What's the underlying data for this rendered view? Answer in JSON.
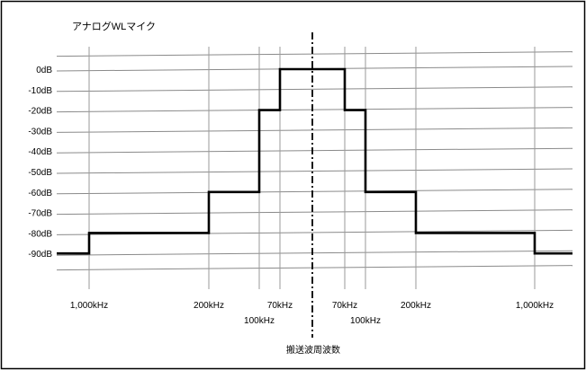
{
  "chart_data": {
    "type": "line",
    "title": "アナログWLマイク",
    "xlabel": "搬送波周波数",
    "ylabel": "",
    "y_ticks": [
      "0dB",
      "-10dB",
      "-20dB",
      "-30dB",
      "-40dB",
      "-50dB",
      "-60dB",
      "-70dB",
      "-80dB",
      "-90dB"
    ],
    "ylim": [
      -90,
      0
    ],
    "x_ticks_row1": [
      "1,000kHz",
      "200kHz",
      "70kHz",
      "70kHz",
      "200kHz",
      "1,000kHz"
    ],
    "x_ticks_row2": [
      "100kHz",
      "100kHz"
    ],
    "center_line": "carrier",
    "grid": true,
    "series": [
      {
        "points": [
          {
            "x": "-1,000kHz",
            "y": -90
          },
          {
            "x": "-1,000kHz",
            "y": -80
          },
          {
            "x": "-200kHz",
            "y": -80
          },
          {
            "x": "-200kHz",
            "y": -60
          },
          {
            "x": "-100kHz",
            "y": -60
          },
          {
            "x": "-100kHz",
            "y": -20
          },
          {
            "x": "-70kHz",
            "y": -20
          },
          {
            "x": "-70kHz",
            "y": 0
          },
          {
            "x": "70kHz",
            "y": 0
          },
          {
            "x": "70kHz",
            "y": -20
          },
          {
            "x": "100kHz",
            "y": -20
          },
          {
            "x": "100kHz",
            "y": -60
          },
          {
            "x": "200kHz",
            "y": -60
          },
          {
            "x": "200kHz",
            "y": -80
          },
          {
            "x": "1,000kHz",
            "y": -80
          },
          {
            "x": "1,000kHz",
            "y": -90
          }
        ]
      }
    ]
  }
}
